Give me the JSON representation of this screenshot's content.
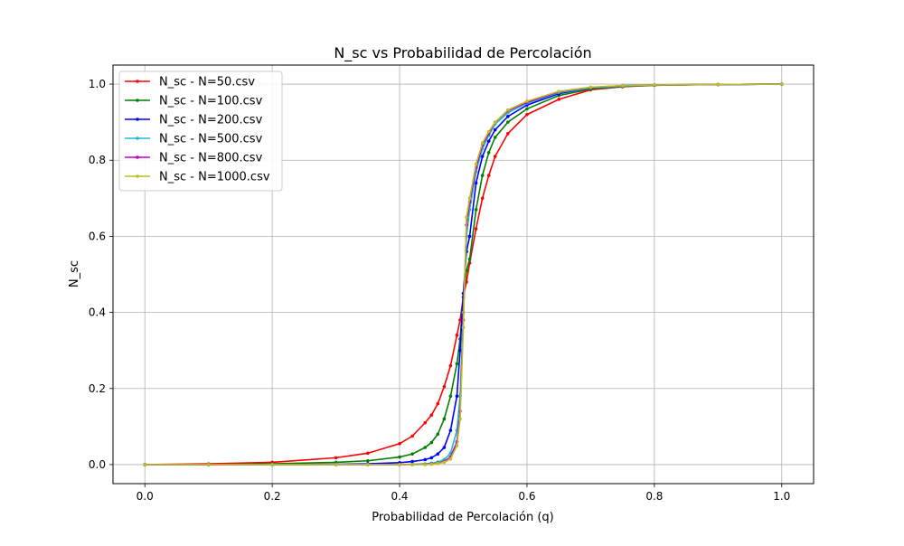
{
  "chart_data": {
    "type": "line",
    "title": "N_sc vs Probabilidad de Percolación",
    "xlabel": "Probabilidad de Percolación (q)",
    "ylabel": "N_sc",
    "xlim": [
      -0.05,
      1.05
    ],
    "ylim": [
      -0.05,
      1.05
    ],
    "xticks": [
      "0.0",
      "0.2",
      "0.4",
      "0.6",
      "0.8",
      "1.0"
    ],
    "yticks": [
      "0.0",
      "0.2",
      "0.4",
      "0.6",
      "0.8",
      "1.0"
    ],
    "grid": true,
    "legend_position": "upper-left",
    "x": [
      0.0,
      0.1,
      0.2,
      0.3,
      0.35,
      0.4,
      0.42,
      0.44,
      0.45,
      0.46,
      0.47,
      0.48,
      0.49,
      0.495,
      0.5,
      0.505,
      0.51,
      0.52,
      0.53,
      0.54,
      0.55,
      0.57,
      0.6,
      0.65,
      0.7,
      0.75,
      0.8,
      0.9,
      1.0
    ],
    "series": [
      {
        "name": "N_sc - N=50.csv",
        "color": "#ff0000",
        "values": [
          0.0,
          0.002,
          0.006,
          0.018,
          0.03,
          0.055,
          0.075,
          0.11,
          0.13,
          0.16,
          0.205,
          0.26,
          0.34,
          0.38,
          0.44,
          0.48,
          0.53,
          0.62,
          0.7,
          0.76,
          0.81,
          0.87,
          0.92,
          0.96,
          0.985,
          0.993,
          0.997,
          0.999,
          1.0
        ]
      },
      {
        "name": "N_sc - N=100.csv",
        "color": "#008000",
        "values": [
          0.0,
          0.0,
          0.002,
          0.006,
          0.01,
          0.02,
          0.028,
          0.045,
          0.058,
          0.08,
          0.12,
          0.18,
          0.265,
          0.33,
          0.44,
          0.51,
          0.54,
          0.67,
          0.76,
          0.82,
          0.86,
          0.9,
          0.935,
          0.97,
          0.987,
          0.994,
          0.997,
          0.999,
          1.0
        ]
      },
      {
        "name": "N_sc - N=200.csv",
        "color": "#0000ff",
        "values": [
          0.0,
          0.0,
          0.0,
          0.001,
          0.002,
          0.005,
          0.008,
          0.013,
          0.018,
          0.028,
          0.045,
          0.09,
          0.18,
          0.3,
          0.45,
          0.56,
          0.6,
          0.74,
          0.81,
          0.85,
          0.88,
          0.915,
          0.945,
          0.975,
          0.99,
          0.995,
          0.998,
          0.999,
          1.0
        ]
      },
      {
        "name": "N_sc - N=500.csv",
        "color": "#17becf",
        "values": [
          0.0,
          0.0,
          0.0,
          0.0,
          0.0,
          0.0,
          0.001,
          0.002,
          0.004,
          0.007,
          0.013,
          0.03,
          0.09,
          0.18,
          0.4,
          0.6,
          0.67,
          0.77,
          0.83,
          0.865,
          0.895,
          0.925,
          0.95,
          0.978,
          0.99,
          0.995,
          0.998,
          0.999,
          1.0
        ]
      },
      {
        "name": "N_sc - N=800.csv",
        "color": "#bf00bf",
        "values": [
          0.0,
          0.0,
          0.0,
          0.0,
          0.0,
          0.0,
          0.0,
          0.001,
          0.002,
          0.004,
          0.008,
          0.02,
          0.06,
          0.14,
          0.38,
          0.63,
          0.69,
          0.78,
          0.84,
          0.87,
          0.9,
          0.93,
          0.952,
          0.98,
          0.991,
          0.996,
          0.998,
          0.999,
          1.0
        ]
      },
      {
        "name": "N_sc - N=1000.csv",
        "color": "#bcbd22",
        "values": [
          0.0,
          0.0,
          0.0,
          0.0,
          0.0,
          0.0,
          0.0,
          0.0,
          0.001,
          0.003,
          0.006,
          0.015,
          0.05,
          0.12,
          0.36,
          0.65,
          0.7,
          0.79,
          0.845,
          0.875,
          0.9,
          0.932,
          0.955,
          0.981,
          0.992,
          0.996,
          0.998,
          0.999,
          1.0
        ]
      }
    ]
  }
}
